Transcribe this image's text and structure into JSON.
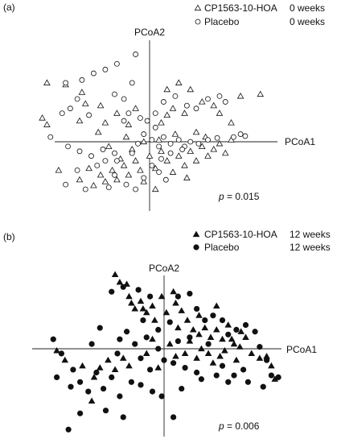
{
  "chart_data": [
    {
      "type": "scatter",
      "panel_label": "(a)",
      "xlabel": "PCoA1",
      "ylabel": "PCoA2",
      "p_value": "= 0.015",
      "p_symbol": "p",
      "legend_placement": "top-right",
      "series": [
        {
          "name": "CP1563-10-HOA",
          "time": "0 weeks",
          "marker": "triangle-open",
          "points": [
            [
              -0.88,
              0.62
            ],
            [
              -0.72,
              0.6
            ],
            [
              -0.92,
              0.25
            ],
            [
              -0.88,
              0.18
            ],
            [
              -0.58,
              0.52
            ],
            [
              -0.55,
              0.4
            ],
            [
              -0.42,
              0.38
            ],
            [
              -0.6,
              0.22
            ],
            [
              -0.38,
              0.2
            ],
            [
              -0.44,
              0.1
            ],
            [
              -0.28,
              0.3
            ],
            [
              -0.18,
              0.18
            ],
            [
              -0.12,
              0.35
            ],
            [
              0.15,
              0.55
            ],
            [
              0.25,
              0.62
            ],
            [
              0.35,
              0.55
            ],
            [
              0.2,
              0.35
            ],
            [
              0.15,
              0.28
            ],
            [
              0.1,
              0.2
            ],
            [
              0.3,
              0.3
            ],
            [
              0.45,
              0.42
            ],
            [
              0.55,
              0.38
            ],
            [
              0.6,
              0.3
            ],
            [
              0.7,
              0.2
            ],
            [
              0.78,
              0.48
            ],
            [
              0.95,
              0.5
            ],
            [
              0.4,
              0.1
            ],
            [
              -0.78,
              -0.3
            ],
            [
              -0.6,
              -0.4
            ],
            [
              -0.52,
              -0.28
            ],
            [
              -0.48,
              -0.46
            ],
            [
              -0.42,
              -0.35
            ],
            [
              -0.38,
              -0.42
            ],
            [
              -0.32,
              -0.3
            ],
            [
              -0.28,
              -0.4
            ],
            [
              -0.22,
              -0.25
            ],
            [
              -0.18,
              -0.35
            ],
            [
              -0.12,
              -0.2
            ],
            [
              -0.08,
              -0.3
            ],
            [
              -0.05,
              -0.42
            ],
            [
              0.0,
              -0.15
            ],
            [
              0.05,
              -0.28
            ],
            [
              0.1,
              -0.1
            ],
            [
              0.15,
              -0.2
            ],
            [
              0.2,
              -0.32
            ],
            [
              0.25,
              -0.15
            ],
            [
              0.3,
              -0.25
            ],
            [
              0.35,
              -0.1
            ],
            [
              0.4,
              -0.2
            ],
            [
              0.45,
              -0.05
            ],
            [
              0.5,
              -0.15
            ],
            [
              0.55,
              -0.08
            ],
            [
              0.6,
              -0.02
            ],
            [
              0.65,
              -0.12
            ],
            [
              0.7,
              0.02
            ],
            [
              -0.35,
              -0.05
            ],
            [
              -0.2,
              0.05
            ],
            [
              -0.15,
              -0.08
            ],
            [
              -0.25,
              -0.18
            ],
            [
              0.08,
              0.02
            ],
            [
              0.22,
              0.08
            ],
            [
              0.05,
              -0.5
            ],
            [
              -0.05,
              0.0
            ],
            [
              0.32,
              -0.38
            ],
            [
              0.48,
              0.05
            ]
          ]
        },
        {
          "name": "Placebo",
          "time": "0 weeks",
          "marker": "circle-open",
          "points": [
            [
              -0.12,
              0.92
            ],
            [
              -0.28,
              0.82
            ],
            [
              -0.38,
              0.76
            ],
            [
              -0.48,
              0.72
            ],
            [
              -0.58,
              0.65
            ],
            [
              -0.72,
              0.62
            ],
            [
              -0.62,
              0.45
            ],
            [
              -0.68,
              0.35
            ],
            [
              -0.75,
              0.3
            ],
            [
              -0.52,
              0.28
            ],
            [
              -0.3,
              0.5
            ],
            [
              -0.22,
              0.45
            ],
            [
              -0.18,
              0.3
            ],
            [
              -0.22,
              0.22
            ],
            [
              -0.08,
              0.25
            ],
            [
              -0.02,
              0.22
            ],
            [
              0.05,
              0.15
            ],
            [
              0.12,
              0.42
            ],
            [
              0.22,
              0.48
            ],
            [
              0.32,
              0.38
            ],
            [
              0.4,
              0.35
            ],
            [
              0.5,
              0.45
            ],
            [
              0.6,
              0.48
            ],
            [
              0.65,
              0.42
            ],
            [
              0.72,
              0.05
            ],
            [
              0.78,
              0.08
            ],
            [
              0.82,
              0.06
            ],
            [
              -0.85,
              0.05
            ],
            [
              -0.7,
              -0.05
            ],
            [
              -0.6,
              -0.1
            ],
            [
              -0.5,
              -0.15
            ],
            [
              -0.4,
              -0.08
            ],
            [
              -0.3,
              -0.12
            ],
            [
              -0.28,
              -0.2
            ],
            [
              -0.15,
              -0.12
            ],
            [
              -0.1,
              -0.02
            ],
            [
              -0.05,
              0.08
            ],
            [
              0.02,
              0.02
            ],
            [
              0.08,
              -0.05
            ],
            [
              0.12,
              0.05
            ],
            [
              0.18,
              -0.02
            ],
            [
              0.25,
              0.02
            ],
            [
              0.3,
              -0.05
            ],
            [
              0.35,
              0.0
            ],
            [
              0.42,
              -0.02
            ],
            [
              0.5,
              0.02
            ],
            [
              0.58,
              0.04
            ],
            [
              -0.72,
              -0.45
            ],
            [
              -0.55,
              -0.5
            ],
            [
              -0.35,
              -0.48
            ],
            [
              -0.2,
              -0.45
            ],
            [
              -0.12,
              -0.5
            ],
            [
              -0.05,
              -0.38
            ],
            [
              0.02,
              -0.25
            ],
            [
              0.08,
              -0.32
            ],
            [
              0.14,
              -0.4
            ],
            [
              0.18,
              -0.12
            ],
            [
              -0.45,
              -0.25
            ],
            [
              -0.38,
              -0.2
            ],
            [
              0.28,
              -0.08
            ],
            [
              -0.62,
              -0.3
            ],
            [
              0.05,
              0.3
            ],
            [
              -0.15,
              0.62
            ],
            [
              0.1,
              -0.18
            ],
            [
              -0.3,
              -0.35
            ]
          ]
        }
      ]
    },
    {
      "type": "scatter",
      "panel_label": "(b)",
      "xlabel": "PCoA1",
      "ylabel": "PCoA2",
      "p_value": "= 0.006",
      "p_symbol": "p",
      "legend_placement": "top-right",
      "series": [
        {
          "name": "CP1563-10-HOA",
          "time": "12 weeks",
          "marker": "triangle-filled",
          "points": [
            [
              -0.42,
              0.78
            ],
            [
              -0.38,
              0.7
            ],
            [
              -0.32,
              0.68
            ],
            [
              -0.3,
              0.55
            ],
            [
              -0.28,
              0.48
            ],
            [
              -0.25,
              0.42
            ],
            [
              -0.2,
              0.5
            ],
            [
              -0.18,
              0.42
            ],
            [
              -0.15,
              0.38
            ],
            [
              -0.1,
              0.45
            ],
            [
              -0.08,
              0.3
            ],
            [
              0.02,
              0.38
            ],
            [
              0.1,
              0.48
            ],
            [
              0.15,
              0.4
            ],
            [
              0.2,
              0.3
            ],
            [
              0.25,
              0.2
            ],
            [
              0.3,
              0.15
            ],
            [
              0.35,
              0.22
            ],
            [
              0.4,
              0.12
            ],
            [
              0.45,
              0.2
            ],
            [
              0.5,
              0.1
            ],
            [
              0.55,
              0.25
            ],
            [
              0.6,
              0.05
            ],
            [
              0.65,
              0.02
            ],
            [
              0.7,
              0.12
            ],
            [
              0.75,
              -0.05
            ],
            [
              0.82,
              -0.1
            ],
            [
              0.88,
              -0.08
            ],
            [
              0.92,
              -0.18
            ],
            [
              0.95,
              -0.32
            ],
            [
              -0.92,
              -0.02
            ],
            [
              -0.85,
              -0.12
            ],
            [
              -0.7,
              -0.18
            ],
            [
              -0.6,
              -0.3
            ],
            [
              -0.55,
              -0.2
            ],
            [
              -0.48,
              -0.12
            ],
            [
              -0.42,
              -0.22
            ],
            [
              -0.35,
              -0.1
            ],
            [
              -0.3,
              -0.18
            ],
            [
              -0.15,
              -0.05
            ],
            [
              -0.1,
              0.1
            ],
            [
              0.05,
              0.05
            ],
            [
              0.1,
              -0.08
            ],
            [
              0.18,
              -0.05
            ],
            [
              0.22,
              0.08
            ],
            [
              0.28,
              -0.1
            ],
            [
              0.32,
              0.0
            ],
            [
              0.38,
              -0.05
            ],
            [
              0.42,
              -0.15
            ],
            [
              0.48,
              -0.08
            ],
            [
              0.52,
              -0.02
            ],
            [
              0.58,
              0.1
            ],
            [
              0.62,
              -0.12
            ],
            [
              0.66,
              0.18
            ],
            [
              -0.62,
              -0.55
            ],
            [
              -0.05,
              -0.2
            ],
            [
              0.12,
              0.22
            ],
            [
              -0.02,
              0.55
            ],
            [
              0.3,
              0.35
            ],
            [
              0.08,
              0.6
            ],
            [
              0.45,
              0.45
            ]
          ]
        },
        {
          "name": "Placebo",
          "time": "12 weeks",
          "marker": "circle-filled",
          "points": [
            [
              -0.35,
              0.65
            ],
            [
              -0.45,
              0.6
            ],
            [
              -0.22,
              0.62
            ],
            [
              -0.12,
              0.55
            ],
            [
              -0.18,
              0.3
            ],
            [
              -0.05,
              0.2
            ],
            [
              0.05,
              0.28
            ],
            [
              0.12,
              0.55
            ],
            [
              0.22,
              0.58
            ],
            [
              0.28,
              0.42
            ],
            [
              0.35,
              0.3
            ],
            [
              0.42,
              0.35
            ],
            [
              0.5,
              0.3
            ],
            [
              0.55,
              0.15
            ],
            [
              0.62,
              0.2
            ],
            [
              0.7,
              0.25
            ],
            [
              0.78,
              0.18
            ],
            [
              0.82,
              0.02
            ],
            [
              0.88,
              -0.12
            ],
            [
              0.92,
              -0.28
            ],
            [
              0.98,
              -0.3
            ],
            [
              0.85,
              -0.4
            ],
            [
              -0.95,
              0.1
            ],
            [
              -0.88,
              -0.05
            ],
            [
              -0.92,
              -0.3
            ],
            [
              -0.8,
              -0.4
            ],
            [
              -0.78,
              -0.22
            ],
            [
              -0.72,
              -0.35
            ],
            [
              -0.65,
              -0.45
            ],
            [
              -0.58,
              -0.25
            ],
            [
              -0.52,
              -0.42
            ],
            [
              -0.45,
              -0.3
            ],
            [
              -0.4,
              -0.05
            ],
            [
              -0.38,
              0.1
            ],
            [
              -0.32,
              0.18
            ],
            [
              -0.25,
              0.05
            ],
            [
              -0.2,
              -0.1
            ],
            [
              -0.12,
              -0.22
            ],
            [
              -0.05,
              0.0
            ],
            [
              0.0,
              -0.12
            ],
            [
              0.08,
              -0.15
            ],
            [
              0.12,
              0.08
            ],
            [
              0.18,
              -0.2
            ],
            [
              0.22,
              0.12
            ],
            [
              0.28,
              -0.25
            ],
            [
              0.32,
              -0.32
            ],
            [
              0.38,
              0.05
            ],
            [
              0.45,
              -0.28
            ],
            [
              0.5,
              -0.18
            ],
            [
              0.55,
              -0.35
            ],
            [
              0.6,
              -0.28
            ],
            [
              0.68,
              -0.22
            ],
            [
              0.72,
              -0.35
            ],
            [
              -0.55,
              0.22
            ],
            [
              -0.62,
              0.05
            ],
            [
              -0.38,
              -0.5
            ],
            [
              -0.28,
              -0.35
            ],
            [
              -0.2,
              -0.38
            ],
            [
              -0.1,
              -0.45
            ],
            [
              -0.02,
              -0.5
            ],
            [
              0.08,
              -0.72
            ],
            [
              -0.35,
              -0.72
            ],
            [
              -0.5,
              -0.65
            ],
            [
              -0.72,
              -0.68
            ],
            [
              -0.82,
              -0.85
            ],
            [
              0.15,
              -0.42
            ],
            [
              -0.15,
              0.12
            ]
          ]
        }
      ]
    }
  ]
}
